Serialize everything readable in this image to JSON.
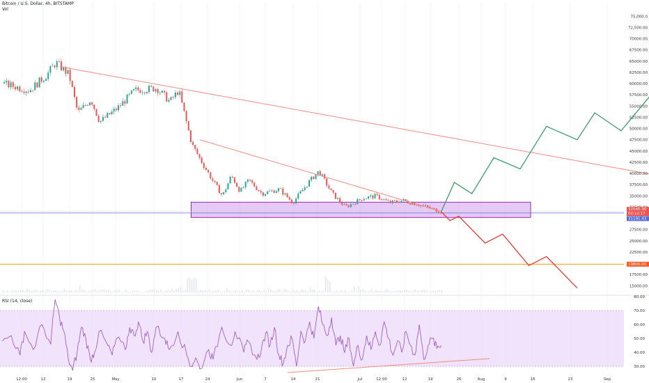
{
  "legend": {
    "symbol": "Bitcoin / U.S. Dollar, 4h, BITSTAMP",
    "volume": "Vol",
    "rsi": "RSI (14, close)"
  },
  "colors": {
    "up": "#26a69a",
    "down": "#ef5350",
    "trendline": "#f28b82",
    "zone_fill": "#d6a6f0",
    "zone_stroke": "#9c27b0",
    "projection_up": "#3d9970",
    "projection_down": "#e53935",
    "support_line": "#ff9800",
    "rsi_line": "#9c5fc4",
    "rsi_band": "#efdcfb",
    "rsi_trendline": "#f28b82"
  },
  "price_axis": {
    "labels": [
      "75,000.0",
      "72,500.00",
      "70000.00",
      "67500.00",
      "65000.00",
      "62500.00",
      "60000.00",
      "57500.00",
      "55000.00",
      "52500.00",
      "50000.00",
      "47500.00",
      "45000.00",
      "42500.00",
      "40000.00",
      "37500.00",
      "35000.00",
      "32500.00",
      "30000.00",
      "27500.00",
      "25000.00",
      "22500.00",
      "20000.00",
      "17500.00",
      "15000.00"
    ],
    "current_price": "31545.30",
    "countdown": "02:12:17",
    "blue_label": "31191.43",
    "orange_label": "19800.00"
  },
  "time_axis": {
    "labels": [
      "12:00",
      "12",
      "19",
      "25",
      "May",
      "10",
      "17",
      "24",
      "Jun",
      "7",
      "14",
      "21",
      "Jul",
      "12:00",
      "12",
      "19",
      "26",
      "Aug",
      "9",
      "16",
      "23",
      "Sep"
    ]
  },
  "rsi_axis": {
    "labels": [
      "80.00",
      "70.00",
      "60.00",
      "50.00",
      "40.00",
      "30.00"
    ]
  },
  "chart_data": [
    {
      "type": "candlestick",
      "title": "Bitcoin / U.S. Dollar, 4h, BITSTAMP",
      "ylim": [
        13500,
        78000
      ],
      "x_labels": [
        "12:00",
        "12",
        "19",
        "25",
        "May",
        "10",
        "17",
        "24",
        "Jun",
        "7",
        "14",
        "21",
        "Jul",
        "12:00",
        "12",
        "19",
        "26",
        "Aug",
        "9",
        "16",
        "23",
        "Sep"
      ],
      "price_path": {
        "days": [
          0,
          6,
          10,
          12,
          13,
          15,
          17,
          20,
          22,
          26,
          30,
          35,
          38,
          40,
          43,
          45,
          48,
          50,
          52,
          54,
          56,
          59,
          63,
          66,
          70,
          72,
          75,
          78,
          82,
          85,
          88,
          91,
          95,
          98,
          100
        ],
        "closes": [
          60000,
          58500,
          62000,
          64700,
          63800,
          62000,
          53500,
          56500,
          51500,
          54500,
          58500,
          59000,
          56000,
          58500,
          46500,
          43000,
          38000,
          35000,
          39500,
          36000,
          38500,
          35500,
          36500,
          33500,
          38500,
          40500,
          35500,
          32500,
          34500,
          35000,
          33500,
          34000,
          33000,
          32000,
          31545
        ]
      },
      "trendlines": [
        {
          "name": "upper",
          "points": [
            [
              13,
              63800
            ],
            [
              176,
              34800
            ]
          ]
        },
        {
          "name": "lower",
          "points": [
            [
              45,
              47500
            ],
            [
              100,
              31545
            ]
          ]
        }
      ],
      "support_zone": [
        30200,
        33600
      ],
      "horizontal_lines": [
        {
          "value": 31191.43
        },
        {
          "value": 19800
        }
      ],
      "projection_bull": [
        [
          100,
          31500
        ],
        [
          103,
          38000
        ],
        [
          107,
          35500
        ],
        [
          112,
          43500
        ],
        [
          118,
          41000
        ],
        [
          124,
          50500
        ],
        [
          131,
          47500
        ],
        [
          135,
          53500
        ],
        [
          141,
          49500
        ],
        [
          148,
          57700
        ],
        [
          155,
          55000
        ]
      ],
      "projection_bear": [
        [
          100,
          31500
        ],
        [
          102,
          29500
        ],
        [
          104,
          30500
        ],
        [
          110,
          24500
        ],
        [
          114,
          26500
        ],
        [
          120,
          19500
        ],
        [
          124,
          21500
        ],
        [
          131,
          14500
        ]
      ]
    },
    {
      "type": "line",
      "title": "RSI (14, close)",
      "ylim": [
        26,
        81
      ],
      "band": [
        30,
        70
      ],
      "points": [
        [
          0,
          48
        ],
        [
          2,
          52
        ],
        [
          4,
          38
        ],
        [
          5,
          55
        ],
        [
          7,
          42
        ],
        [
          9,
          60
        ],
        [
          11,
          46
        ],
        [
          12,
          78
        ],
        [
          13,
          65
        ],
        [
          14,
          55
        ],
        [
          15,
          35
        ],
        [
          16,
          27
        ],
        [
          17,
          40
        ],
        [
          18,
          58
        ],
        [
          19,
          50
        ],
        [
          20,
          35
        ],
        [
          21,
          40
        ],
        [
          22,
          55
        ],
        [
          24,
          45
        ],
        [
          25,
          38
        ],
        [
          26,
          50
        ],
        [
          28,
          42
        ],
        [
          29,
          58
        ],
        [
          30,
          52
        ],
        [
          31,
          62
        ],
        [
          32,
          48
        ],
        [
          33,
          55
        ],
        [
          34,
          40
        ],
        [
          35,
          58
        ],
        [
          37,
          50
        ],
        [
          38,
          42
        ],
        [
          40,
          55
        ],
        [
          42,
          38
        ],
        [
          43,
          30
        ],
        [
          44,
          36
        ],
        [
          45,
          28
        ],
        [
          47,
          42
        ],
        [
          48,
          35
        ],
        [
          50,
          58
        ],
        [
          52,
          45
        ],
        [
          53,
          55
        ],
        [
          55,
          40
        ],
        [
          56,
          48
        ],
        [
          58,
          35
        ],
        [
          59,
          42
        ],
        [
          60,
          54
        ],
        [
          61,
          45
        ],
        [
          62,
          58
        ],
        [
          63,
          38
        ],
        [
          64,
          32
        ],
        [
          65,
          45
        ],
        [
          66,
          50
        ],
        [
          67,
          30
        ],
        [
          68,
          55
        ],
        [
          69,
          48
        ],
        [
          70,
          62
        ],
        [
          71,
          50
        ],
        [
          72,
          73
        ],
        [
          73,
          60
        ],
        [
          74,
          52
        ],
        [
          75,
          65
        ],
        [
          76,
          45
        ],
        [
          77,
          52
        ],
        [
          78,
          40
        ],
        [
          79,
          50
        ],
        [
          80,
          30
        ],
        [
          81,
          45
        ],
        [
          82,
          35
        ],
        [
          83,
          52
        ],
        [
          84,
          42
        ],
        [
          85,
          55
        ],
        [
          86,
          45
        ],
        [
          87,
          62
        ],
        [
          88,
          50
        ],
        [
          89,
          38
        ],
        [
          90,
          48
        ],
        [
          91,
          40
        ],
        [
          92,
          55
        ],
        [
          93,
          45
        ],
        [
          94,
          38
        ],
        [
          95,
          60
        ],
        [
          96,
          35
        ],
        [
          97,
          45
        ],
        [
          98,
          50
        ],
        [
          99,
          43
        ],
        [
          100,
          45
        ]
      ],
      "trendline": [
        [
          65,
          25.5
        ],
        [
          111,
          35.5
        ]
      ]
    }
  ]
}
